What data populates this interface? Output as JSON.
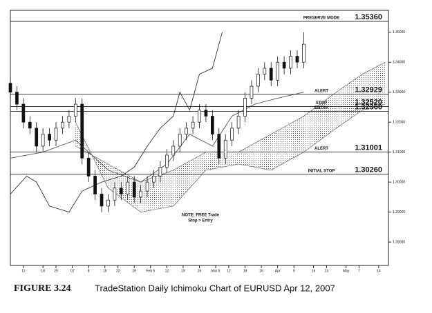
{
  "chart_data": {
    "type": "candlestick",
    "caption_label": "FIGURE 3.24",
    "caption": "TradeStation Daily Ichimoku Chart of EURUSD Apr 12, 2007",
    "note": [
      "NOTE: FREE Trade",
      "Stop > Entry"
    ],
    "xlim": [
      0,
      116
    ],
    "ylim": [
      1.2722,
      1.3573
    ],
    "xticks": [
      {
        "value": 4,
        "label": "11"
      },
      {
        "value": 10,
        "label": "18"
      },
      {
        "value": 14,
        "label": "25"
      },
      {
        "value": 19,
        "label": "'07"
      },
      {
        "value": 24,
        "label": "8"
      },
      {
        "value": 29,
        "label": "15"
      },
      {
        "value": 33,
        "label": "22"
      },
      {
        "value": 38,
        "label": "29"
      },
      {
        "value": 43,
        "label": "Feb 5"
      },
      {
        "value": 48,
        "label": "12"
      },
      {
        "value": 53,
        "label": "19"
      },
      {
        "value": 58,
        "label": "26"
      },
      {
        "value": 63,
        "label": "Mar 5"
      },
      {
        "value": 67,
        "label": "12"
      },
      {
        "value": 72,
        "label": "19"
      },
      {
        "value": 77,
        "label": "26"
      },
      {
        "value": 82,
        "label": "Apr"
      },
      {
        "value": 87,
        "label": "9"
      },
      {
        "value": 93,
        "label": "16"
      },
      {
        "value": 97,
        "label": "23"
      },
      {
        "value": 103,
        "label": "May"
      },
      {
        "value": 107,
        "label": "7"
      },
      {
        "value": 113,
        "label": "14"
      }
    ],
    "yticks": [
      {
        "value": 1.28,
        "label": "1.28000"
      },
      {
        "value": 1.29,
        "label": "1.29000"
      },
      {
        "value": 1.3,
        "label": "1.30000"
      },
      {
        "value": 1.31,
        "label": "1.31000"
      },
      {
        "value": 1.32,
        "label": "1.32000"
      },
      {
        "value": 1.33,
        "label": "1.33000"
      },
      {
        "value": 1.34,
        "label": "1.34000"
      },
      {
        "value": 1.35,
        "label": "1.35000"
      }
    ],
    "levels": [
      {
        "name": "PRESERVE MODE",
        "value": 1.3536,
        "value_label": "1.35360"
      },
      {
        "name": "ALERT",
        "value": 1.32929,
        "value_label": "1.32929"
      },
      {
        "name": "STOP",
        "value": 1.3252,
        "value_label": "1.32520"
      },
      {
        "name": "ENTRY",
        "value": 1.3236,
        "value_label": "1.32360"
      },
      {
        "name": "ALERT",
        "value": 1.31001,
        "value_label": "1.31001"
      },
      {
        "name": "INITIAL STOP",
        "value": 1.3026,
        "value_label": "1.30260"
      }
    ],
    "x": [
      0,
      2,
      4,
      6,
      8,
      10,
      12,
      14,
      16,
      18,
      20,
      22,
      24,
      26,
      28,
      30,
      32,
      34,
      36,
      38,
      40,
      42,
      44,
      46,
      48,
      50,
      52,
      54,
      56,
      58,
      60,
      62,
      64,
      66,
      68,
      70,
      72,
      74,
      76,
      78,
      80,
      82,
      84,
      86,
      88,
      90
    ],
    "open": [
      1.333,
      1.33,
      1.326,
      1.32,
      1.318,
      1.312,
      1.316,
      1.314,
      1.318,
      1.32,
      1.322,
      1.326,
      1.308,
      1.302,
      1.296,
      1.292,
      1.294,
      1.298,
      1.296,
      1.3,
      1.295,
      1.297,
      1.3,
      1.302,
      1.305,
      1.309,
      1.312,
      1.316,
      1.318,
      1.32,
      1.324,
      1.322,
      1.316,
      1.308,
      1.314,
      1.318,
      1.322,
      1.328,
      1.332,
      1.336,
      1.338,
      1.334,
      1.34,
      1.338,
      1.342,
      1.34
    ],
    "high": [
      1.335,
      1.332,
      1.328,
      1.322,
      1.32,
      1.318,
      1.318,
      1.32,
      1.322,
      1.324,
      1.328,
      1.328,
      1.31,
      1.304,
      1.298,
      1.296,
      1.3,
      1.3,
      1.302,
      1.302,
      1.299,
      1.302,
      1.304,
      1.307,
      1.311,
      1.314,
      1.318,
      1.32,
      1.322,
      1.326,
      1.326,
      1.324,
      1.318,
      1.316,
      1.32,
      1.324,
      1.33,
      1.334,
      1.338,
      1.34,
      1.34,
      1.342,
      1.342,
      1.344,
      1.344,
      1.35
    ],
    "low": [
      1.328,
      1.324,
      1.318,
      1.316,
      1.31,
      1.31,
      1.312,
      1.312,
      1.316,
      1.318,
      1.32,
      1.306,
      1.3,
      1.294,
      1.29,
      1.29,
      1.292,
      1.294,
      1.294,
      1.293,
      1.293,
      1.295,
      1.298,
      1.3,
      1.303,
      1.307,
      1.31,
      1.314,
      1.316,
      1.318,
      1.32,
      1.314,
      1.306,
      1.306,
      1.312,
      1.316,
      1.32,
      1.326,
      1.33,
      1.334,
      1.332,
      1.332,
      1.336,
      1.336,
      1.338,
      1.338
    ],
    "close": [
      1.33,
      1.326,
      1.32,
      1.318,
      1.312,
      1.316,
      1.314,
      1.318,
      1.32,
      1.322,
      1.326,
      1.308,
      1.302,
      1.296,
      1.292,
      1.294,
      1.298,
      1.296,
      1.3,
      1.295,
      1.297,
      1.3,
      1.302,
      1.305,
      1.309,
      1.312,
      1.316,
      1.318,
      1.32,
      1.324,
      1.322,
      1.316,
      1.308,
      1.314,
      1.318,
      1.322,
      1.328,
      1.332,
      1.336,
      1.338,
      1.334,
      1.34,
      1.338,
      1.342,
      1.34,
      1.346
    ],
    "lines": [
      {
        "color": "#333333",
        "x": [
          0,
          5,
          8,
          12,
          18,
          22,
          28,
          34,
          38,
          42,
          46,
          50,
          52,
          55,
          58,
          62,
          65
        ],
        "values": [
          1.296,
          1.302,
          1.3,
          1.292,
          1.29,
          1.297,
          1.3,
          1.302,
          1.305,
          1.312,
          1.318,
          1.322,
          1.33,
          1.324,
          1.336,
          1.338,
          1.35
        ]
      },
      {
        "color": "#555555",
        "x": [
          0,
          10,
          20,
          30,
          40,
          48,
          55,
          62,
          68,
          75,
          82,
          90
        ],
        "values": [
          1.308,
          1.31,
          1.314,
          1.304,
          1.3,
          1.306,
          1.316,
          1.312,
          1.322,
          1.326,
          1.328,
          1.33
        ]
      }
    ],
    "cloud": {
      "color": "#777777",
      "x": [
        20,
        30,
        40,
        50,
        60,
        70,
        80,
        90,
        100,
        108,
        115
      ],
      "span_a": [
        1.312,
        1.306,
        1.3,
        1.304,
        1.31,
        1.31,
        1.316,
        1.322,
        1.33,
        1.336,
        1.34
      ],
      "span_b": [
        1.32,
        1.298,
        1.29,
        1.292,
        1.304,
        1.306,
        1.304,
        1.31,
        1.318,
        1.324,
        1.326
      ]
    }
  }
}
